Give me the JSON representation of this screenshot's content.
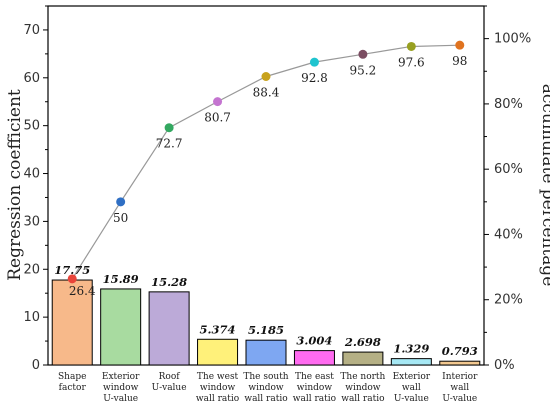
{
  "chart_data": {
    "type": "bar",
    "categories": [
      [
        "Shape",
        "factor"
      ],
      [
        "Exterior",
        "window",
        "U-value"
      ],
      [
        "Roof",
        "U-value"
      ],
      [
        "The west",
        "window",
        "wall ratio"
      ],
      [
        "The south",
        "window",
        "wall ratio"
      ],
      [
        "The east",
        "window",
        "wall ratio"
      ],
      [
        "The north",
        "window",
        "wall ratio"
      ],
      [
        "Exterior",
        "wall",
        "U-value"
      ],
      [
        "Interior",
        "wall",
        "U-value"
      ]
    ],
    "series": [
      {
        "type": "bar",
        "axis": "left",
        "values": [
          17.75,
          15.89,
          15.28,
          5.374,
          5.185,
          3.004,
          2.698,
          1.329,
          0.793
        ],
        "labels": [
          "17.75",
          "15.89",
          "15.28",
          "5.374",
          "5.185",
          "3.004",
          "2.698",
          "1.329",
          "0.793"
        ],
        "colors": [
          "#f7b98a",
          "#a8dba0",
          "#bcaad8",
          "#fff17a",
          "#7ea7f2",
          "#ff6bf0",
          "#b5b085",
          "#a6e8f4",
          "#f2c890"
        ]
      },
      {
        "type": "line",
        "axis": "right",
        "values": [
          26.4,
          50,
          72.7,
          80.7,
          88.4,
          92.8,
          95.2,
          97.6,
          98
        ],
        "labels": [
          "26.4",
          "50",
          "72.7",
          "80.7",
          "88.4",
          "92.8",
          "95.2",
          "97.6",
          "98"
        ],
        "line_color": "#999999",
        "marker_colors": [
          "#e8443a",
          "#2f6fc4",
          "#33a860",
          "#c474d0",
          "#c8a21c",
          "#1fc4cf",
          "#7b4d62",
          "#98a021",
          "#e0731f"
        ]
      }
    ],
    "ylabel": "Regression coefficient",
    "y2label": "accumulate percentage",
    "ylim": [
      0,
      75
    ],
    "yticks": [
      "0",
      "10",
      "20",
      "30",
      "40",
      "50",
      "60",
      "70"
    ],
    "y2lim": [
      0,
      110
    ],
    "y2ticks": [
      "0%",
      "20%",
      "40%",
      "60%",
      "80%",
      "100%"
    ],
    "grid": false
  }
}
